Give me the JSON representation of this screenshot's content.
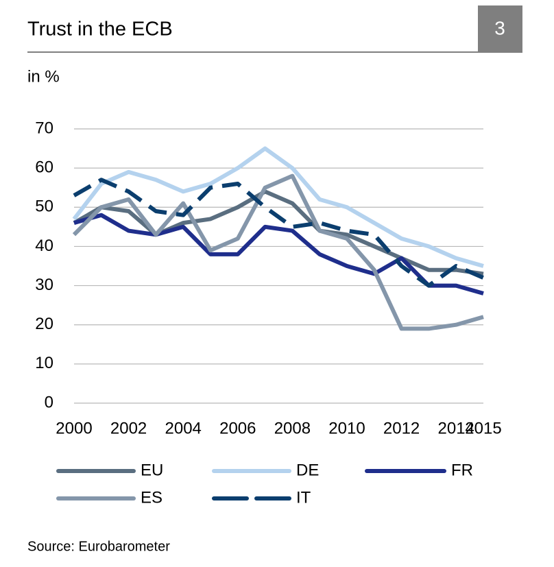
{
  "page_number": "3",
  "chart_data": {
    "type": "line",
    "title": "Trust in the ECB",
    "subtitle": "in %",
    "source": "Source: Eurobarometer",
    "x": [
      2000,
      2001,
      2002,
      2003,
      2004,
      2005,
      2006,
      2007,
      2008,
      2009,
      2010,
      2011,
      2012,
      2013,
      2014,
      2015
    ],
    "xlim": [
      2000,
      2015
    ],
    "xticks": [
      2000,
      2002,
      2004,
      2006,
      2008,
      2010,
      2012,
      2014,
      2015
    ],
    "ylim": [
      0,
      70
    ],
    "yticks": [
      0,
      10,
      20,
      30,
      40,
      50,
      60,
      70
    ],
    "grid": true,
    "series": [
      {
        "name": "EU",
        "color": "#5a6e80",
        "dashed": false,
        "values": [
          46,
          50,
          49,
          43,
          46,
          47,
          50,
          54,
          51,
          44,
          43,
          40,
          37,
          34,
          34,
          33
        ]
      },
      {
        "name": "DE",
        "color": "#b4d2ee",
        "dashed": false,
        "values": [
          47,
          56,
          59,
          57,
          54,
          56,
          60,
          65,
          60,
          52,
          50,
          46,
          42,
          40,
          37,
          35
        ]
      },
      {
        "name": "FR",
        "color": "#1f2e8c",
        "dashed": false,
        "values": [
          46,
          48,
          44,
          43,
          45,
          38,
          38,
          45,
          44,
          38,
          35,
          33,
          37,
          30,
          30,
          28
        ]
      },
      {
        "name": "ES",
        "color": "#8496aa",
        "dashed": false,
        "values": [
          43,
          50,
          52,
          43,
          51,
          39,
          42,
          55,
          58,
          44,
          42,
          34,
          19,
          19,
          20,
          22
        ]
      },
      {
        "name": "IT",
        "color": "#0b3e6e",
        "dashed": true,
        "values": [
          53,
          57,
          54,
          49,
          48,
          55,
          56,
          50,
          45,
          46,
          44,
          43,
          35,
          30,
          35,
          32
        ]
      }
    ]
  }
}
